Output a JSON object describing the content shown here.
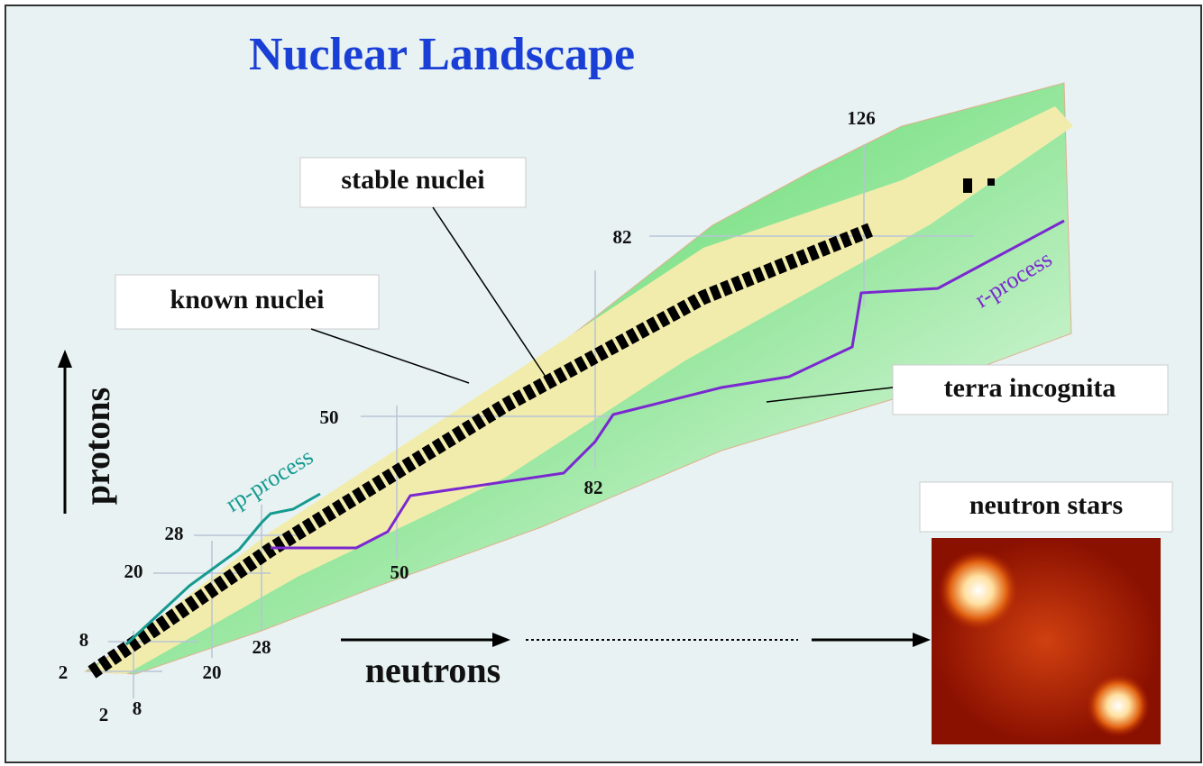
{
  "title": "Nuclear Landscape",
  "labels": {
    "stable": "stable nuclei",
    "known": "known nuclei",
    "terra": "terra incognita",
    "stars": "neutron stars",
    "protons": "protons",
    "neutrons": "neutrons",
    "rp": "rp-process",
    "r": "r-process"
  },
  "magic_labels": [
    "2",
    "8",
    "20",
    "28",
    "50",
    "82",
    "126",
    "2",
    "8",
    "20",
    "28",
    "50",
    "82"
  ]
}
